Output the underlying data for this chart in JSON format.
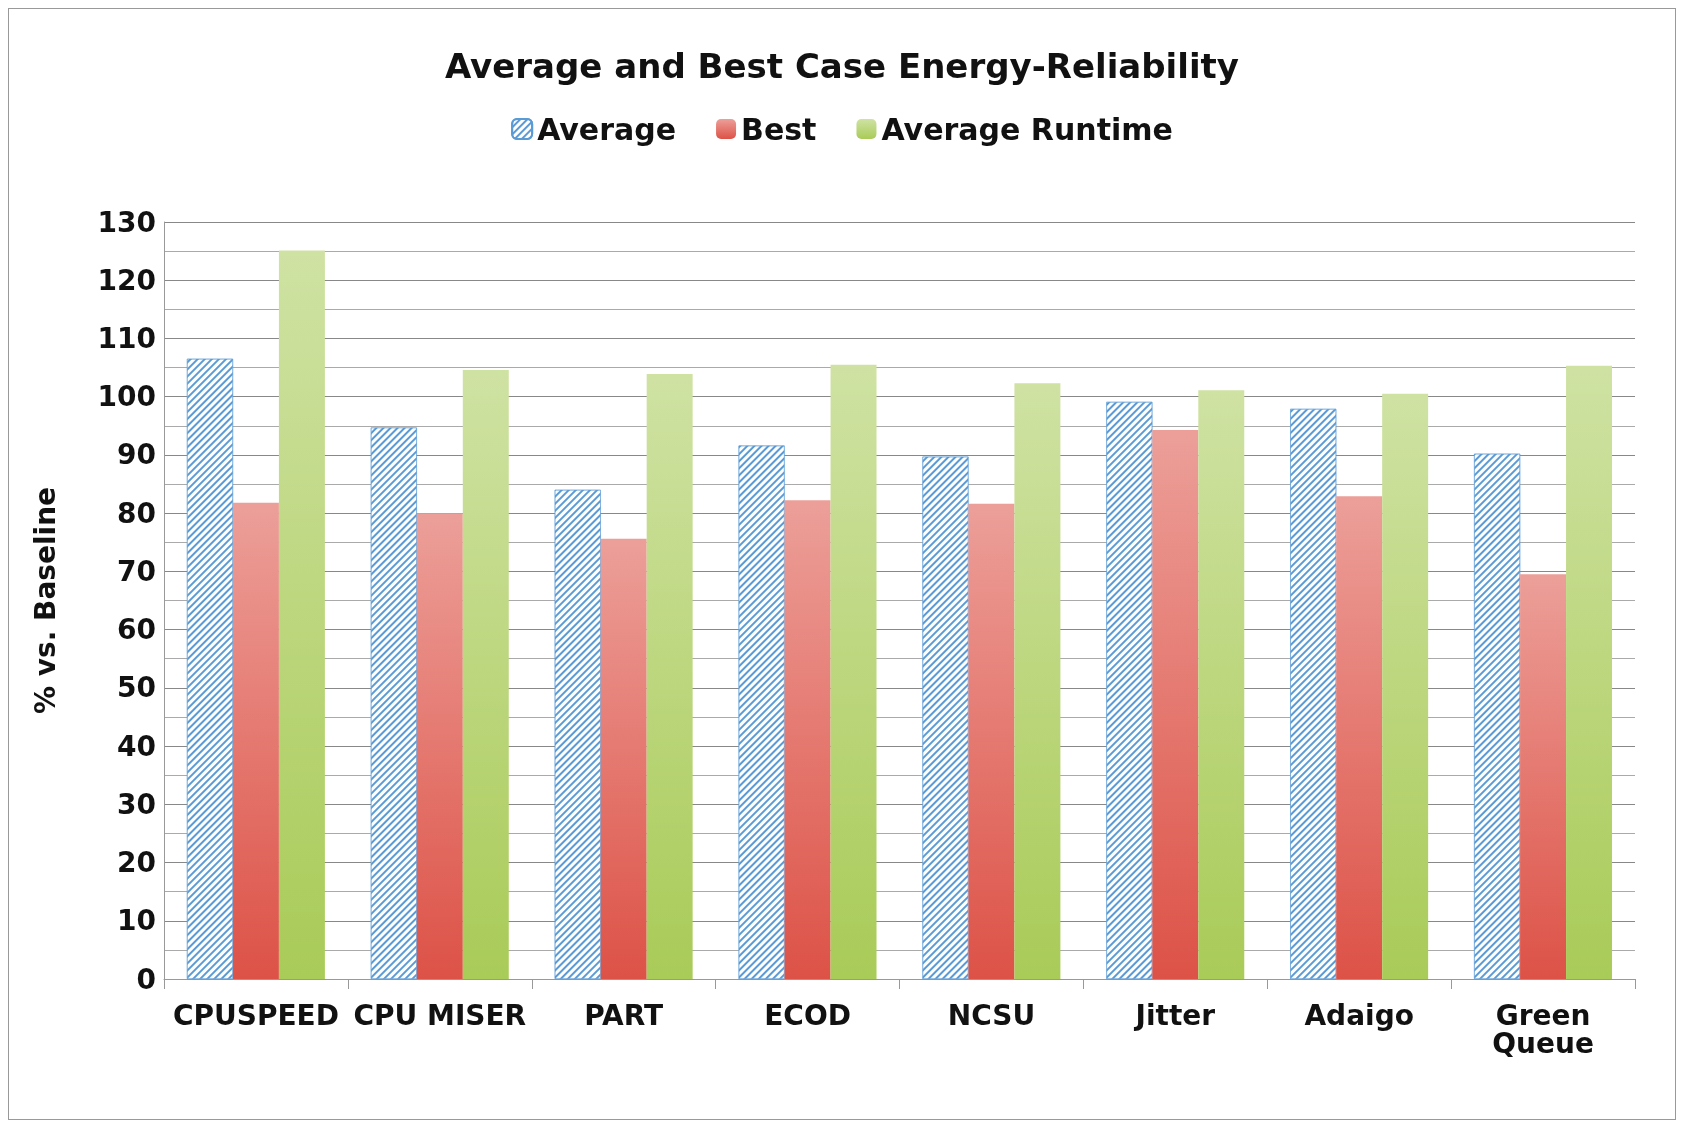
{
  "chart_data": {
    "type": "bar",
    "title": "Average and Best Case Energy-Reliability",
    "ylabel": "% vs. Baseline",
    "categories": [
      "CPUSPEED",
      "CPU MISER",
      "PART",
      "ECOD",
      "NCSU",
      "Jitter",
      "Adaigo",
      "Green\nQueue"
    ],
    "series": [
      {
        "name": "Average",
        "color": "#5b9bd5",
        "values": [
          106.5,
          94.7,
          84,
          91.6,
          89.7,
          99.1,
          97.9,
          90.2
        ]
      },
      {
        "name": "Best",
        "color": "#dd5247",
        "values": [
          81.8,
          80,
          75.6,
          82.2,
          81.6,
          94.3,
          82.9,
          69.5
        ]
      },
      {
        "name": "Average Runtime",
        "color": "#a9cb58",
        "values": [
          125.1,
          104.6,
          103.9,
          105.5,
          102.3,
          101.1,
          100.5,
          105.3
        ]
      }
    ],
    "ylim": [
      0,
      130
    ],
    "yticks": [
      0,
      10,
      20,
      30,
      40,
      50,
      60,
      70,
      80,
      90,
      100,
      110,
      120,
      130
    ],
    "grid": true,
    "legend": "top"
  }
}
